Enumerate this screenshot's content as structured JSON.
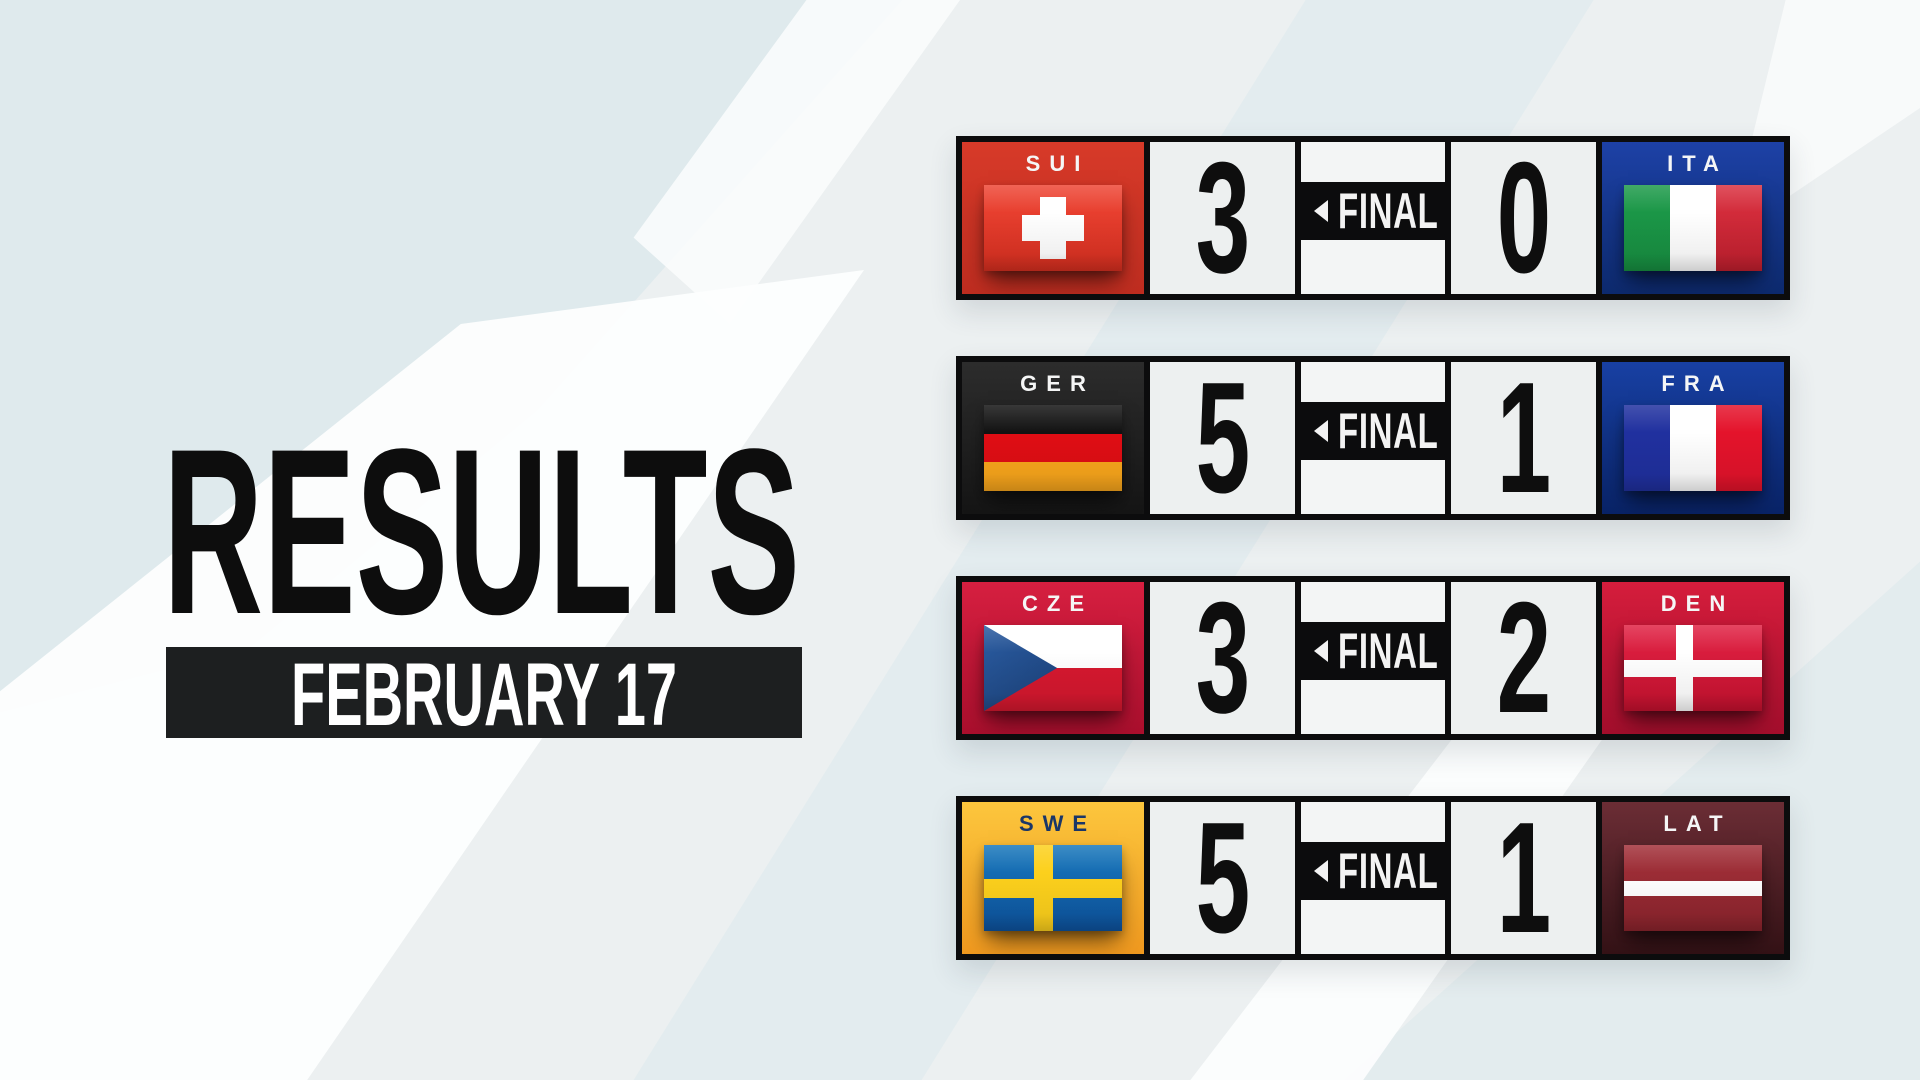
{
  "page": {
    "title": "RESULTS",
    "date": "FEBRUARY 17"
  },
  "matches": [
    {
      "home": {
        "code": "SUI",
        "country": "Switzerland"
      },
      "home_score": "3",
      "status": "FINAL",
      "winner": "home",
      "away": {
        "code": "ITA",
        "country": "Italy"
      },
      "away_score": "0"
    },
    {
      "home": {
        "code": "GER",
        "country": "Germany"
      },
      "home_score": "5",
      "status": "FINAL",
      "winner": "home",
      "away": {
        "code": "FRA",
        "country": "France"
      },
      "away_score": "1"
    },
    {
      "home": {
        "code": "CZE",
        "country": "Czechia"
      },
      "home_score": "3",
      "status": "FINAL",
      "winner": "home",
      "away": {
        "code": "DEN",
        "country": "Denmark"
      },
      "away_score": "2"
    },
    {
      "home": {
        "code": "SWE",
        "country": "Sweden"
      },
      "home_score": "5",
      "status": "FINAL",
      "winner": "home",
      "away": {
        "code": "LAT",
        "country": "Latvia"
      },
      "away_score": "1"
    }
  ],
  "colors": {
    "bg_base": "#ecf0f1",
    "bg_blue": "#dde9ec",
    "bg_white": "#fdfefe",
    "board_black": "#0c0c0d",
    "cell_bg": "#edf0f0",
    "mid_cell_bg": "#f3f5f5",
    "score_color": "#0e0e0e",
    "label_light": "#f5f6f6",
    "title_color": "#0d0d0d",
    "date_bar_bg": "#1d1f20",
    "sui_panel_a": "#d73a29",
    "sui_panel_b": "#bf2d20",
    "sui_flag_red": "#d92f20",
    "ita_panel_a": "#1d41a6",
    "ita_panel_b": "#0d2a6e",
    "ita_flag_green": "#178f41",
    "ita_flag_red": "#c21f2e",
    "ger_panel_a": "#2c2c2c",
    "ger_panel_b": "#151515",
    "ger_flag_black": "#121212",
    "ger_flag_red": "#e00d14",
    "ger_flag_gold": "#f9a61c",
    "fra_panel_a": "#1840a3",
    "fra_panel_b": "#092367",
    "fra_flag_blue": "#20309f",
    "fra_flag_red": "#e4132b",
    "cze_panel_a": "#d61f40",
    "cze_panel_b": "#aa0f2d",
    "cze_flag_red": "#d6182f",
    "cze_flag_blue": "#15376b",
    "den_panel_a": "#d51d3c",
    "den_panel_b": "#a30e2c",
    "den_flag_red": "#c8112f",
    "swe_panel_a": "#fcc63d",
    "swe_panel_b": "#f0991f",
    "swe_flag_blue_a": "#1777bb",
    "swe_flag_blue_b": "#0d539f",
    "swe_flag_yellow": "#fcd01c",
    "swe_label": "#1a3668",
    "lat_panel_a": "#6b2d35",
    "lat_panel_b": "#341216",
    "lat_flag_maroon_a": "#a23039",
    "lat_flag_maroon_b": "#8d242d"
  }
}
